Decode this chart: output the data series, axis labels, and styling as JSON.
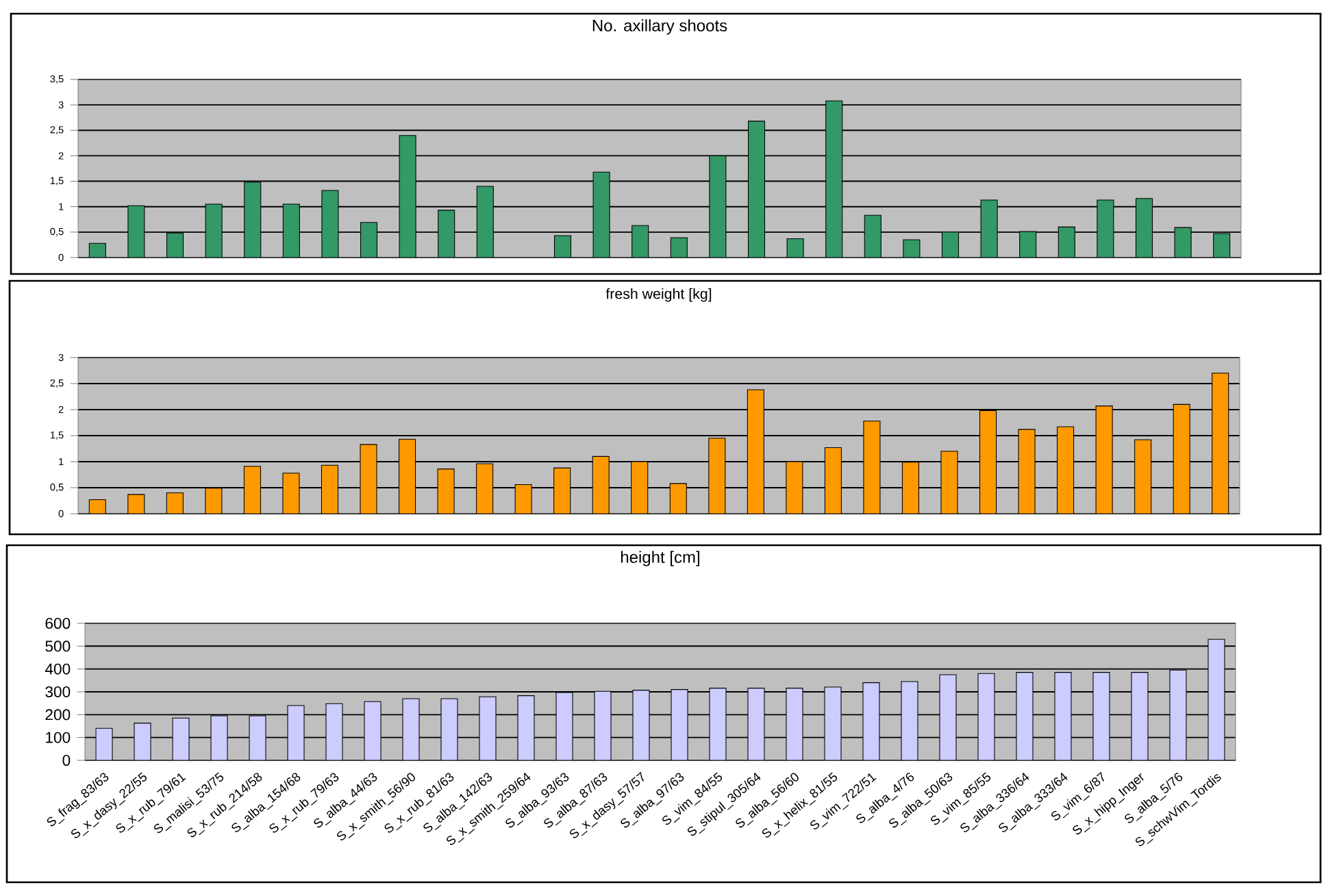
{
  "chart_data": [
    {
      "type": "bar",
      "title": "No. axillary shoots",
      "categories": [
        null,
        null,
        null,
        null,
        null,
        null,
        null,
        null,
        null,
        null,
        null,
        null,
        null,
        null,
        null,
        null,
        null,
        null,
        null,
        null,
        null,
        null,
        null,
        null,
        null,
        null,
        null,
        null,
        null,
        null
      ],
      "values": [
        0.28,
        1.02,
        0.48,
        1.05,
        1.48,
        1.05,
        1.32,
        0.69,
        2.4,
        0.93,
        1.4,
        null,
        0.43,
        1.68,
        0.63,
        0.39,
        2.0,
        2.68,
        0.37,
        3.08,
        0.83,
        0.35,
        0.5,
        1.13,
        0.51,
        0.6,
        1.13,
        1.16,
        0.59,
        0.47
      ],
      "color": "#339966",
      "ylim": [
        0,
        3.5
      ],
      "yticks": [
        0,
        {
          "value": 0.5,
          "label": "0,5"
        },
        1,
        {
          "value": 1.5,
          "label": "1,5"
        },
        2,
        {
          "value": 2.5,
          "label": "2,5"
        },
        3,
        {
          "value": 3.5,
          "label": "3,5"
        }
      ],
      "grid": "y",
      "tick_labels": "y"
    },
    {
      "type": "bar",
      "title": "fresh weight [kg]",
      "categories": [
        null,
        null,
        null,
        null,
        null,
        null,
        null,
        null,
        null,
        null,
        null,
        null,
        null,
        null,
        null,
        null,
        null,
        null,
        null,
        null,
        null,
        null,
        null,
        null,
        null,
        null,
        null,
        null,
        null,
        null
      ],
      "values": [
        0.27,
        0.37,
        0.4,
        0.49,
        0.91,
        0.78,
        0.93,
        1.33,
        1.43,
        0.86,
        0.96,
        0.56,
        0.88,
        1.1,
        1.0,
        0.58,
        1.45,
        2.38,
        1.0,
        1.27,
        1.78,
        0.99,
        1.2,
        1.98,
        1.62,
        1.67,
        2.07,
        1.42,
        2.1,
        2.7
      ],
      "color": "#ff9900",
      "ylim": [
        0,
        3
      ],
      "yticks": [
        0,
        {
          "value": 0.5,
          "label": "0,5"
        },
        1,
        {
          "value": 1.5,
          "label": "1,5"
        },
        2,
        {
          "value": 2.5,
          "label": "2,5"
        },
        3
      ],
      "grid": "y",
      "tick_labels": "y"
    },
    {
      "type": "bar",
      "title": "height [cm]",
      "categories": [
        "S_frag_83/63",
        "S_x_dasy_22/55",
        "S_x_rub_79/61",
        "S_malisi_53/75",
        "S_x_rub_214/58",
        "S_alba_154/68",
        "S_x_rub_79/63",
        "S_alba_44/63",
        "S_x_smith_56/90",
        "S_x_rub_81/63",
        "S_alba_142/63",
        "S_x_smith_259/64",
        "S_alba_93/63",
        "S_alba_87/63",
        "S_x_dasy_57/57",
        "S_alba_97/63",
        "S_vim_84/55",
        "S_stipul_305/64",
        "S_alba_56/60",
        "S_x_helix_81/55",
        "S_vim_722/51",
        "S_alba_4/76",
        "S_alba_50/63",
        "S_vim_85/55",
        "S_alba_336/64",
        "S_alba_333/64",
        "S_vim_6/87",
        "S_x_hipp_Inger",
        "S_alba_5/76",
        "S_schwVim_Tordis"
      ],
      "values": [
        140,
        163,
        185,
        195,
        195,
        240,
        248,
        257,
        270,
        270,
        278,
        283,
        297,
        302,
        307,
        310,
        316,
        316,
        316,
        321,
        340,
        345,
        375,
        380,
        385,
        385,
        385,
        385,
        395,
        530
      ],
      "color": "#ccccff",
      "ylim": [
        0,
        600
      ],
      "yticks": [
        0,
        100,
        200,
        300,
        400,
        500,
        600
      ],
      "grid": "y"
    }
  ]
}
